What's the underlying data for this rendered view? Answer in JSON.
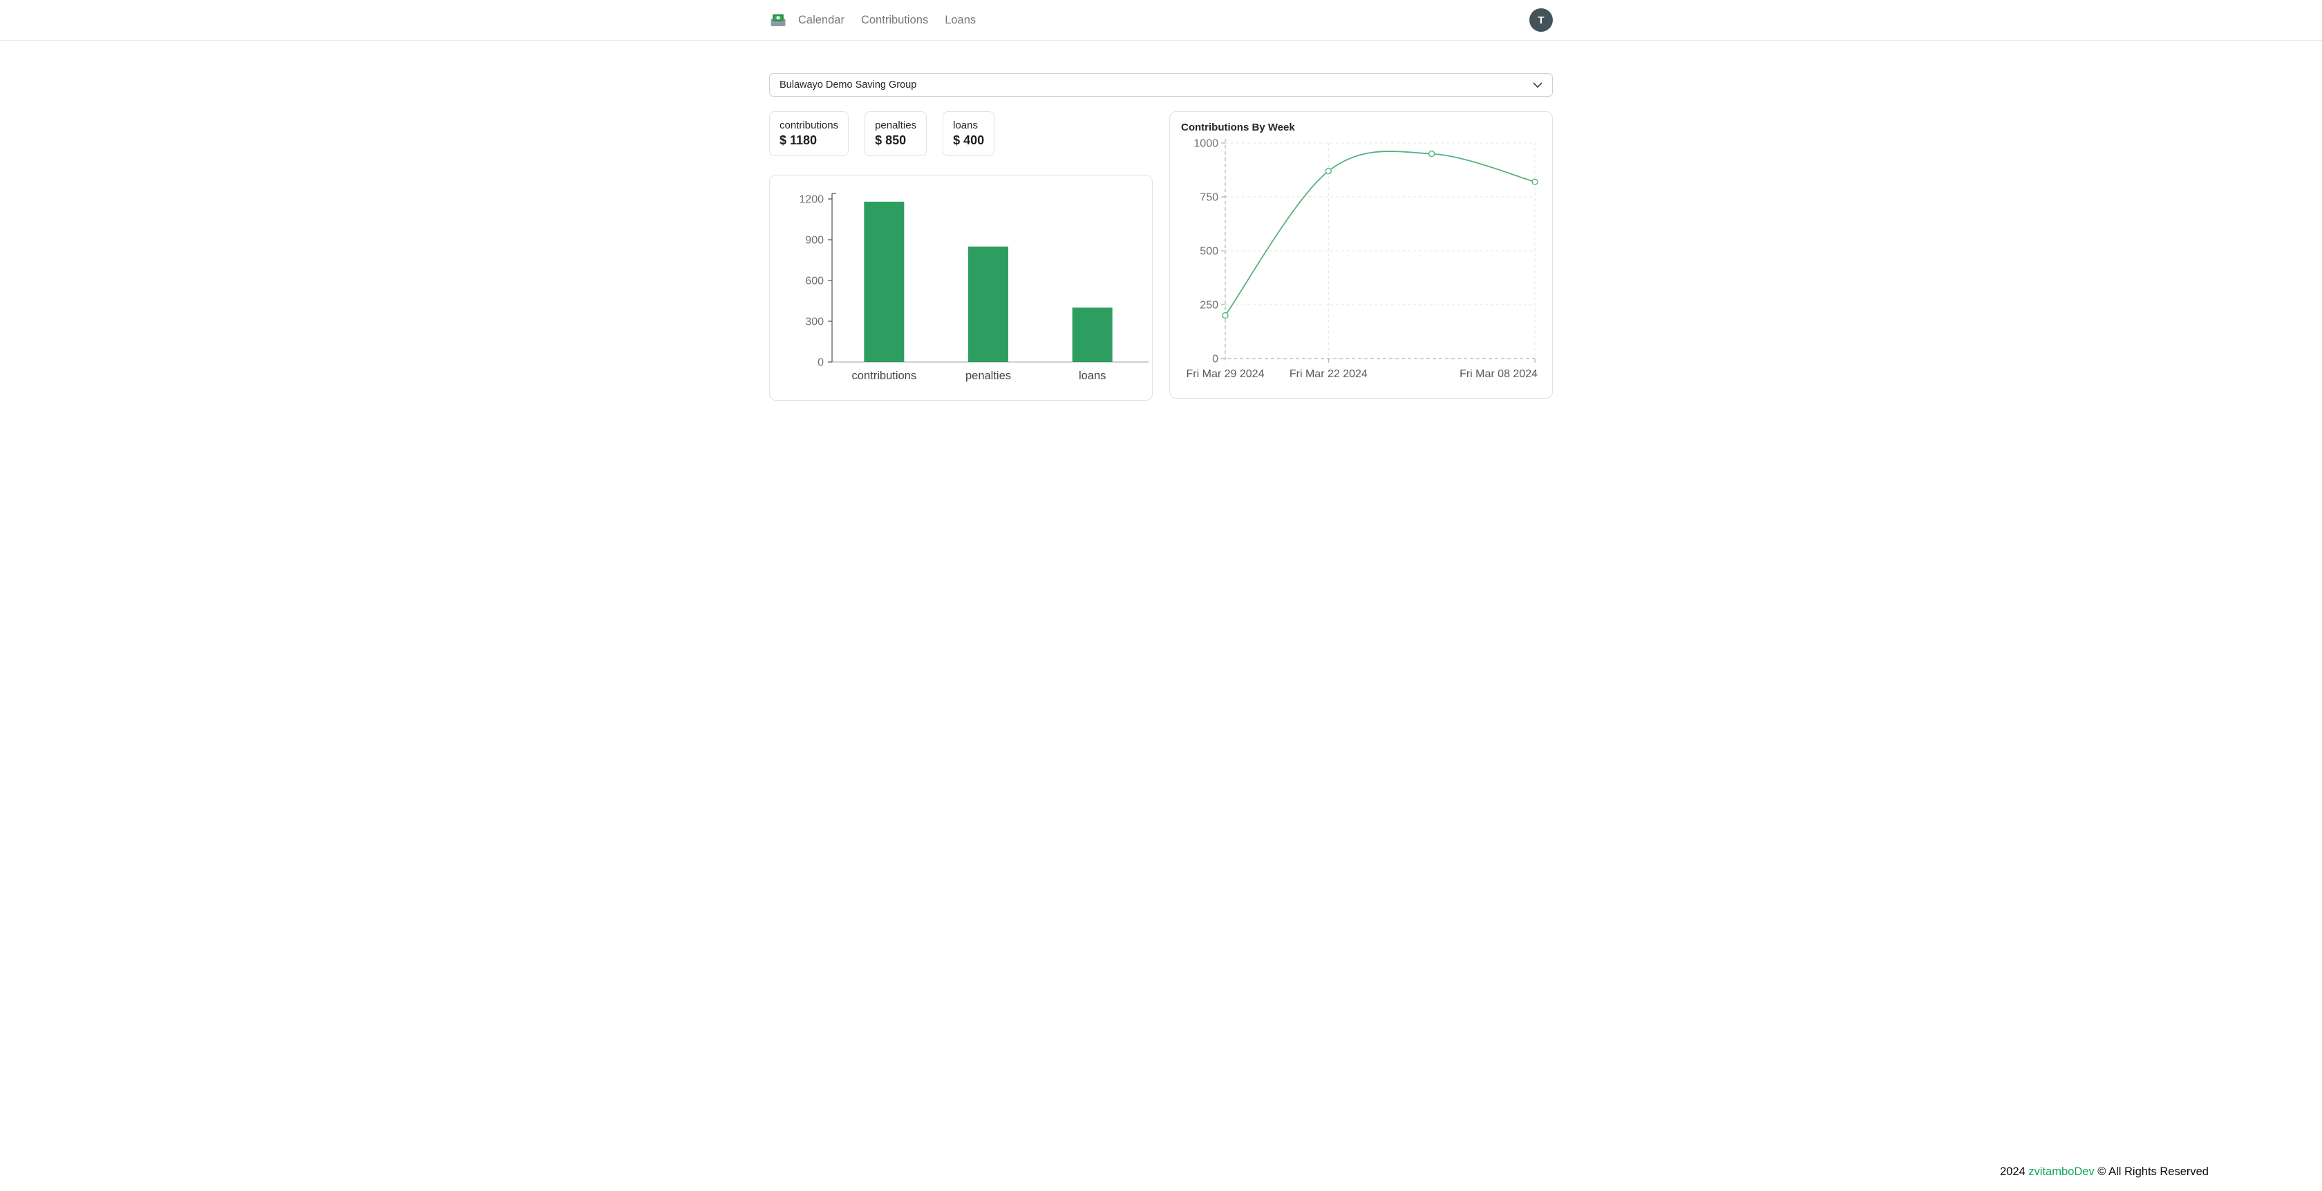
{
  "nav": {
    "items": [
      {
        "label": "Calendar"
      },
      {
        "label": "Contributions"
      },
      {
        "label": "Loans"
      }
    ],
    "avatar_initial": "T"
  },
  "group_select": {
    "value": "Bulawayo Demo Saving Group"
  },
  "stats": [
    {
      "label": "contributions",
      "value": "$ 1180"
    },
    {
      "label": "penalties",
      "value": "$ 850"
    },
    {
      "label": "loans",
      "value": "$ 400"
    }
  ],
  "footer": {
    "year": "2024",
    "brand": "zvitamboDev",
    "rights": "© All Rights Reserved"
  },
  "colors": {
    "bar_green": "#2e9e60",
    "line_green": "#55b27c",
    "brand_green": "#13a453",
    "avatar_bg": "#44525c"
  },
  "chart_data": [
    {
      "type": "bar",
      "title": "",
      "categories": [
        "contributions",
        "penalties",
        "loans"
      ],
      "values": [
        1180,
        850,
        400
      ],
      "yticks": [
        0,
        300,
        600,
        900,
        1200
      ],
      "ylim": [
        0,
        1200
      ],
      "bar_color": "#2e9e60",
      "grid": false,
      "legend": false
    },
    {
      "type": "line",
      "title": "Contributions By Week",
      "x_labels": [
        "Fri Mar 29 2024",
        "Fri Mar 22 2024",
        "",
        "Fri Mar 08 2024"
      ],
      "values": [
        200,
        870,
        950,
        820
      ],
      "yticks": [
        0,
        250,
        500,
        750,
        1000
      ],
      "ylim": [
        0,
        1000
      ],
      "line_color": "#55b27c",
      "point_style": "hollow-circle",
      "grid": "dashed",
      "legend": false
    }
  ]
}
